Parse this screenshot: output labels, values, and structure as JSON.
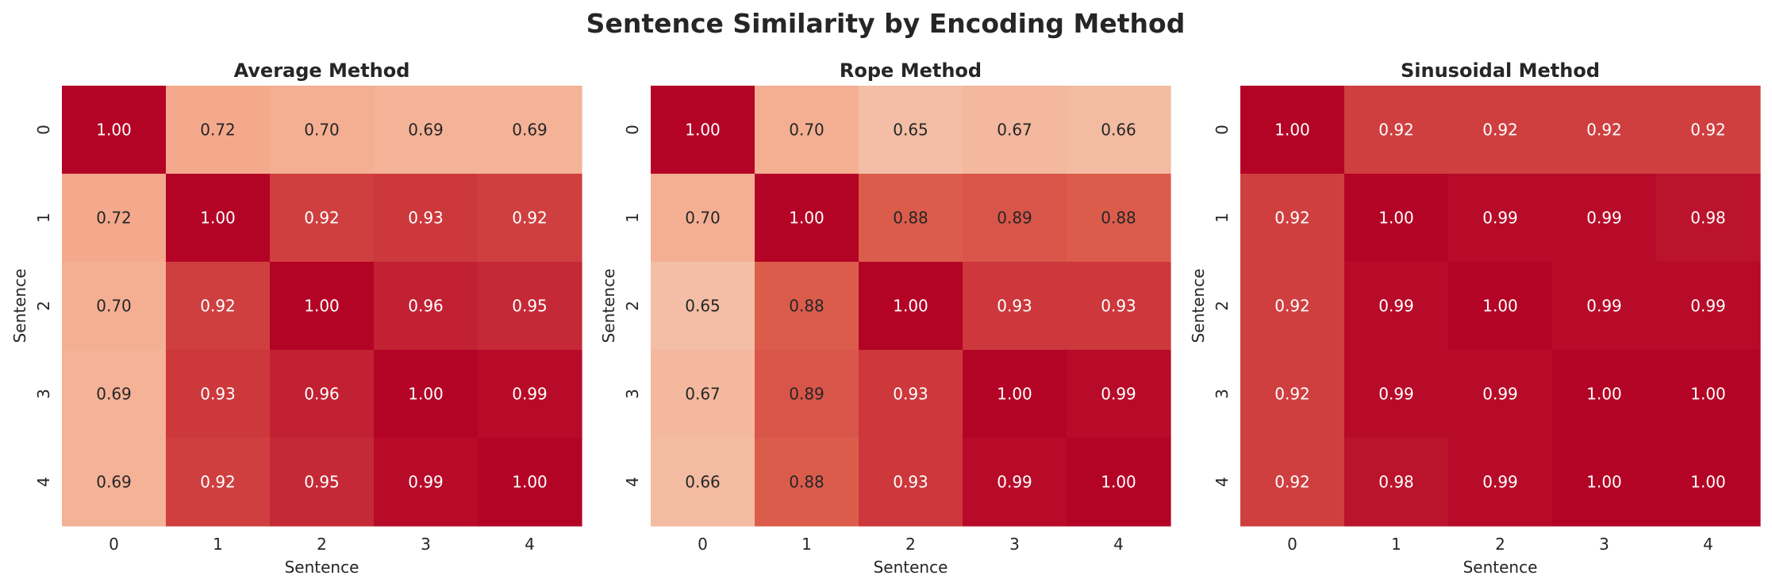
{
  "figure": {
    "title": "Sentence Similarity by Encoding Method"
  },
  "colormap": {
    "name": "coolwarm",
    "vmin": 0.0,
    "vmax": 1.0
  },
  "chart_data": [
    {
      "type": "heatmap",
      "title": "Average Method",
      "xlabel": "Sentence",
      "ylabel": "Sentence",
      "x_ticks": [
        "0",
        "1",
        "2",
        "3",
        "4"
      ],
      "y_ticks": [
        "0",
        "1",
        "2",
        "3",
        "4"
      ],
      "values": [
        [
          1.0,
          0.72,
          0.7,
          0.69,
          0.69
        ],
        [
          0.72,
          1.0,
          0.92,
          0.93,
          0.92
        ],
        [
          0.7,
          0.92,
          1.0,
          0.96,
          0.95
        ],
        [
          0.69,
          0.93,
          0.96,
          1.0,
          0.99
        ],
        [
          0.69,
          0.92,
          0.95,
          0.99,
          1.0
        ]
      ],
      "annotations_format": "0.00",
      "colorbar": false,
      "grid": false
    },
    {
      "type": "heatmap",
      "title": "Rope Method",
      "xlabel": "Sentence",
      "ylabel": "Sentence",
      "x_ticks": [
        "0",
        "1",
        "2",
        "3",
        "4"
      ],
      "y_ticks": [
        "0",
        "1",
        "2",
        "3",
        "4"
      ],
      "values": [
        [
          1.0,
          0.7,
          0.65,
          0.67,
          0.66
        ],
        [
          0.7,
          1.0,
          0.88,
          0.89,
          0.88
        ],
        [
          0.65,
          0.88,
          1.0,
          0.93,
          0.93
        ],
        [
          0.67,
          0.89,
          0.93,
          1.0,
          0.99
        ],
        [
          0.66,
          0.88,
          0.93,
          0.99,
          1.0
        ]
      ],
      "annotations_format": "0.00",
      "colorbar": false,
      "grid": false
    },
    {
      "type": "heatmap",
      "title": "Sinusoidal Method",
      "xlabel": "Sentence",
      "ylabel": "Sentence",
      "x_ticks": [
        "0",
        "1",
        "2",
        "3",
        "4"
      ],
      "y_ticks": [
        "0",
        "1",
        "2",
        "3",
        "4"
      ],
      "values": [
        [
          1.0,
          0.92,
          0.92,
          0.92,
          0.92
        ],
        [
          0.92,
          1.0,
          0.99,
          0.99,
          0.98
        ],
        [
          0.92,
          0.99,
          1.0,
          0.99,
          0.99
        ],
        [
          0.92,
          0.99,
          0.99,
          1.0,
          1.0
        ],
        [
          0.92,
          0.98,
          0.99,
          1.0,
          1.0
        ]
      ],
      "annotations_format": "0.00",
      "colorbar": false,
      "grid": false
    }
  ]
}
